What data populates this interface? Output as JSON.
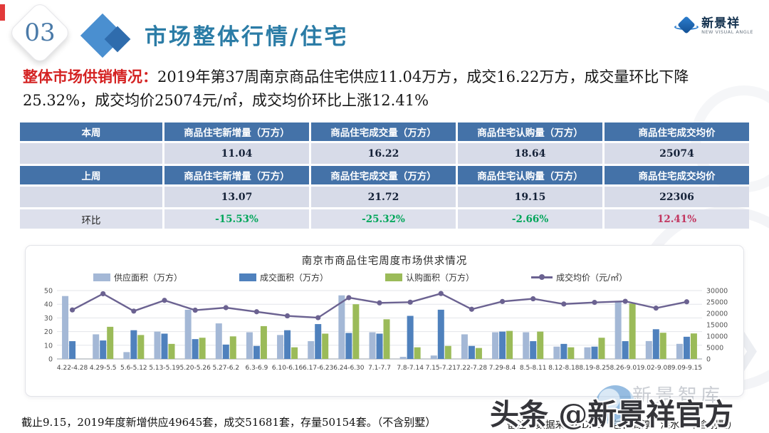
{
  "header": {
    "number": "03",
    "title": "市场整体行情/住宅",
    "logo_text": "新景祥",
    "logo_sub": "NEW VISUAL ANGLE"
  },
  "intro": {
    "label": "整体市场供销情况：",
    "body": "2019年第37周南京商品住宅供应11.04万方，成交16.22万方，成交量环比下降25.32%，成交均价25074元/㎡，成交均价环比上涨12.41%"
  },
  "table": {
    "col_headers": [
      "商品住宅新增量（万方）",
      "商品住宅成交量（万方）",
      "商品住宅认购量（万方）",
      "商品住宅成交均价"
    ],
    "this_week": {
      "label": "本周",
      "values": [
        "11.04",
        "16.22",
        "18.64",
        "25074"
      ]
    },
    "last_week": {
      "label": "上周",
      "values": [
        "13.07",
        "21.72",
        "19.15",
        "22306"
      ]
    },
    "wow": {
      "label": "环比",
      "values": [
        "-15.53%",
        "-25.32%",
        "-2.66%",
        "12.41%"
      ],
      "trend": [
        "down",
        "down",
        "down",
        "up"
      ]
    }
  },
  "chart_data": {
    "type": "bar",
    "title": "南京市商品住宅周度市场供求情况",
    "categories": [
      "4.22-4.28",
      "4.29-5.5",
      "5.6-5.12",
      "5.13-5.19",
      "5.20-5.26",
      "5.27-6.2",
      "6.3-6.9",
      "6.10-6.16",
      "6.17-6.23",
      "6.24-6.30",
      "7.1-7.7",
      "7.8-7.14",
      "7.15-7.21",
      "7.22-7.28",
      "7.29-8.4",
      "8.5-8.11",
      "8.12-8.18",
      "8.19-8.25",
      "8.26-9.01",
      "9.02-9.08",
      "9.09-9.15"
    ],
    "series": [
      {
        "name": "供应面积（万方）",
        "type": "bar",
        "color": "#a4b8d6",
        "axis": "left",
        "values": [
          46,
          18,
          5,
          20,
          36,
          26,
          19.5,
          17.5,
          13,
          46.5,
          19.5,
          1.5,
          2.5,
          18,
          19.5,
          19.5,
          9,
          8.5,
          42.5,
          13.07,
          11.04
        ]
      },
      {
        "name": "成交面积（万方）",
        "type": "bar",
        "color": "#4f81bd",
        "axis": "left",
        "values": [
          13,
          13.5,
          21,
          18.5,
          14.5,
          10.5,
          9.5,
          21,
          25.5,
          19,
          18.5,
          31.5,
          36,
          9.5,
          20,
          13,
          11,
          9,
          13,
          21.72,
          16.22
        ]
      },
      {
        "name": "认购面积（万方）",
        "type": "bar",
        "color": "#9bbb59",
        "axis": "left",
        "values": [
          0,
          23.5,
          17.5,
          11,
          15.5,
          16.5,
          24,
          8.5,
          18.5,
          40,
          29,
          8.5,
          9.5,
          8,
          20.5,
          20,
          8.5,
          15.5,
          40.5,
          19.15,
          18.64
        ]
      },
      {
        "name": "成交均价（元/㎡）",
        "type": "line",
        "color": "#6b6291",
        "axis": "right",
        "values": [
          21500,
          28600,
          21000,
          25700,
          21400,
          22500,
          20700,
          18900,
          18100,
          26900,
          24600,
          24900,
          28700,
          21800,
          25200,
          26400,
          24100,
          24800,
          25300,
          22306,
          25074
        ]
      }
    ],
    "left_axis": {
      "min": 0,
      "max": 50,
      "ticks": [
        0,
        10,
        20,
        30,
        40,
        50
      ]
    },
    "right_axis": {
      "min": 0,
      "max": 30000,
      "ticks": [
        0,
        5000,
        10000,
        15000,
        20000,
        25000,
        30000
      ]
    },
    "grid": true,
    "legend_position": "top"
  },
  "footer": {
    "left": "截止9.15，2019年度新增供应49645套，成交51681套，存量50154套。（不含别墅）",
    "note": "备注：数据来源RDAS（包含高淳、溧水，不含别墅）"
  },
  "watermarks": {
    "headline": "头条 @新景祥官方",
    "library": "新景智库"
  }
}
